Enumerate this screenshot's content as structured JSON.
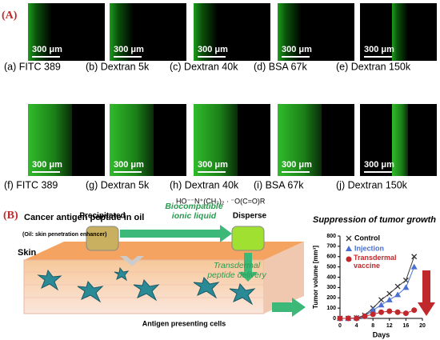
{
  "panel_a": {
    "label": "(A)",
    "scale_bar": "300 μm",
    "captions": [
      "(a) FITC 389",
      "(b) Dextran 5k",
      "(c) Dextran 40k",
      "(d) BSA 67k",
      "(e) Dextran 150k",
      "(f) FITC 389",
      "(g) Dextran 5k",
      "(h) Dextran 40k",
      "(i) BSA 67k",
      "(j) Dextran 150k"
    ]
  },
  "panel_b": {
    "label": "(B)",
    "oil_text": "Cancer antigen peptide in oil",
    "oil_note": "(Oil: skin penetration enhancer)",
    "precipitated": "Precipitated",
    "ionic_liquid": "Biocompatible ionic liquid",
    "disperse": "Disperse",
    "delivery": "Transdermal peptide delivery",
    "skin": "Skin",
    "apc": "Antigen presenting cells",
    "result_title": "Suppression of tumor growth"
  },
  "chart_data": {
    "type": "line",
    "xlabel": "Days",
    "ylabel": "Tumor volume [mm³]",
    "x": [
      0,
      2,
      4,
      6,
      8,
      10,
      12,
      14,
      16,
      18
    ],
    "series": [
      {
        "name": "Control",
        "color": "#333333",
        "marker": "x",
        "values": [
          0,
          0,
          5,
          30,
          100,
          180,
          240,
          310,
          370,
          600
        ]
      },
      {
        "name": "Injection",
        "color": "#4a6fd0",
        "marker": "triangle",
        "values": [
          0,
          0,
          5,
          20,
          80,
          130,
          180,
          230,
          300,
          500
        ]
      },
      {
        "name": "Transdermal vaccine",
        "color": "#c0282b",
        "marker": "circle",
        "values": [
          0,
          0,
          0,
          20,
          40,
          60,
          70,
          60,
          50,
          80
        ]
      }
    ],
    "xlim": [
      0,
      20
    ],
    "xticks": [
      0,
      4,
      8,
      12,
      16,
      20
    ],
    "ylim": [
      0,
      800
    ],
    "yticks": [
      0,
      100,
      200,
      300,
      400,
      500,
      600,
      700,
      800
    ]
  }
}
